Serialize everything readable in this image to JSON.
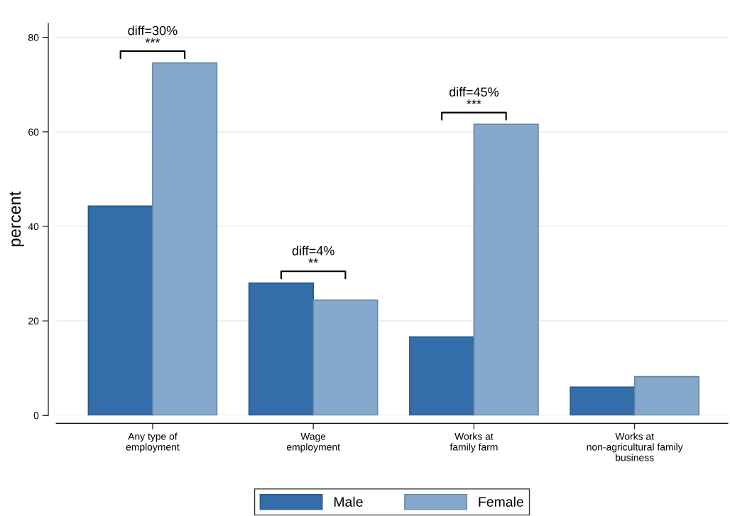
{
  "chart_data": {
    "type": "bar",
    "ylabel": "percent",
    "categories": [
      "Any type of\nemployment",
      "Wage\nemployment",
      "Works at\nfamily farm",
      "Works at\nnon-agricultural family\nbusiness"
    ],
    "series": [
      {
        "name": "Male",
        "color": "#336eab",
        "values": [
          44.3,
          28.0,
          16.6,
          6.0
        ]
      },
      {
        "name": "Female",
        "color": "#85a8cd",
        "values": [
          74.6,
          24.4,
          61.6,
          8.2
        ]
      }
    ],
    "ylim": [
      0,
      83
    ],
    "yticks": [
      0,
      20,
      40,
      60,
      80
    ],
    "grid": "y",
    "legend": "bottom",
    "annotations": [
      "diff=30%\n***",
      "diff=4%\n**",
      "diff=45%\n***"
    ]
  }
}
